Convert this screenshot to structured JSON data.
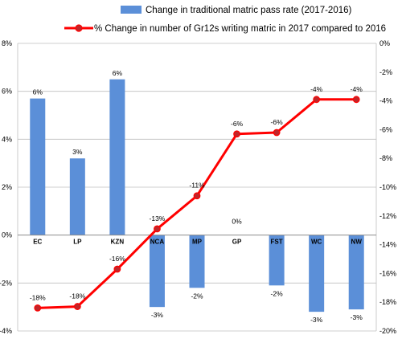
{
  "chart_data": {
    "type": "bar+line",
    "categories": [
      "EC",
      "LP",
      "KZN",
      "NCA",
      "MP",
      "GP",
      "FST",
      "WC",
      "NW"
    ],
    "bar_series": {
      "name": "Change in traditional matric pass rate (2017-2016)",
      "values": [
        5.7,
        3.2,
        6.5,
        -3.0,
        -2.2,
        0.0,
        -2.1,
        -3.2,
        -3.1
      ],
      "labels": [
        "6%",
        "3%",
        "6%",
        "-3%",
        "-2%",
        "0%",
        "-2%",
        "-3%",
        "-3%"
      ],
      "color": "#5b8fd8",
      "axis": "left",
      "ylim": [
        -4,
        8
      ],
      "ticks": [
        "-4%",
        "-2%",
        "0%",
        "2%",
        "4%",
        "6%",
        "8%"
      ]
    },
    "line_series": {
      "name": "% Change in number of Gr12s writing matric in 2017 compared to 2016",
      "values": [
        -18.4,
        -18.3,
        -15.7,
        -12.9,
        -10.6,
        -6.3,
        -6.2,
        -3.9,
        -3.9
      ],
      "labels": [
        "-18%",
        "-18%",
        "-16%",
        "-13%",
        "-11%",
        "-6%",
        "-6%",
        "-4%",
        "-4%"
      ],
      "color": "#ff0000",
      "marker_fill": "#c0262a",
      "axis": "right",
      "ylim": [
        -20,
        0
      ],
      "ticks": [
        "-20%",
        "-18%",
        "-16%",
        "-14%",
        "-12%",
        "-10%",
        "-8%",
        "-6%",
        "-4%",
        "-2%",
        "0%"
      ]
    },
    "grid": true,
    "legend_position": "top"
  }
}
